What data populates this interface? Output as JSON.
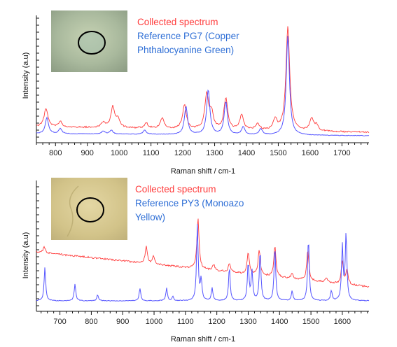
{
  "colors": {
    "collected": "#ff3b3b",
    "reference": "#5555ff",
    "legend_reference": "#2f6fd6",
    "axis": "#111111"
  },
  "chart_data": [
    {
      "type": "line",
      "panel": "top",
      "xlabel": "Raman shift / cm-1",
      "ylabel": "Intensity (a.u)",
      "xlim": [
        740,
        1785
      ],
      "x_ticks": [
        "800",
        "900",
        "1000",
        "1100",
        "1200",
        "1300",
        "1400",
        "1500",
        "1600",
        "1700"
      ],
      "legend": [
        "Collected spectrum",
        "Reference PG7 (Copper",
        "Phthalocyanine Green)"
      ],
      "grid": false,
      "inset": "microscope photo with black circle, top-left",
      "series": [
        {
          "name": "Collected spectrum",
          "peaks": [
            {
              "x": 770,
              "y": 0.18
            },
            {
              "x": 815,
              "y": 0.05
            },
            {
              "x": 950,
              "y": 0.05
            },
            {
              "x": 980,
              "y": 0.2
            },
            {
              "x": 997,
              "y": 0.08
            },
            {
              "x": 1085,
              "y": 0.05
            },
            {
              "x": 1135,
              "y": 0.1
            },
            {
              "x": 1205,
              "y": 0.23
            },
            {
              "x": 1275,
              "y": 0.33
            },
            {
              "x": 1290,
              "y": 0.15
            },
            {
              "x": 1335,
              "y": 0.3
            },
            {
              "x": 1385,
              "y": 0.14
            },
            {
              "x": 1435,
              "y": 0.06
            },
            {
              "x": 1490,
              "y": 0.1
            },
            {
              "x": 1530,
              "y": 1.0
            },
            {
              "x": 1605,
              "y": 0.12
            },
            {
              "x": 1620,
              "y": 0.05
            }
          ]
        },
        {
          "name": "Reference PG7 (Copper Phthalocyanine Green)",
          "peaks": [
            {
              "x": 773,
              "y": 0.16
            },
            {
              "x": 815,
              "y": 0.05
            },
            {
              "x": 950,
              "y": 0.03
            },
            {
              "x": 975,
              "y": 0.04
            },
            {
              "x": 1080,
              "y": 0.04
            },
            {
              "x": 1210,
              "y": 0.28
            },
            {
              "x": 1280,
              "y": 0.45
            },
            {
              "x": 1335,
              "y": 0.33
            },
            {
              "x": 1390,
              "y": 0.08
            },
            {
              "x": 1445,
              "y": 0.06
            },
            {
              "x": 1530,
              "y": 1.0
            }
          ]
        }
      ]
    },
    {
      "type": "line",
      "panel": "bottom",
      "xlabel": "Raman shift / cm-1",
      "ylabel": "Intensity (a.u)",
      "xlim": [
        625,
        1685
      ],
      "x_ticks": [
        "700",
        "800",
        "900",
        "1000",
        "1100",
        "1200",
        "1300",
        "1400",
        "1500",
        "1600"
      ],
      "legend": [
        "Collected spectrum",
        "Reference PY3 (Monoazo",
        "Yellow)"
      ],
      "grid": false,
      "inset": "microscope photo with black circle, top-left",
      "series": [
        {
          "name": "Collected spectrum",
          "peaks": [
            {
              "x": 650,
              "y": 0.1
            },
            {
              "x": 975,
              "y": 0.3
            },
            {
              "x": 998,
              "y": 0.15
            },
            {
              "x": 1140,
              "y": 0.9
            },
            {
              "x": 1190,
              "y": 0.1
            },
            {
              "x": 1240,
              "y": 0.15
            },
            {
              "x": 1300,
              "y": 0.4
            },
            {
              "x": 1335,
              "y": 0.45
            },
            {
              "x": 1385,
              "y": 0.55
            },
            {
              "x": 1440,
              "y": 0.1
            },
            {
              "x": 1490,
              "y": 0.55
            },
            {
              "x": 1550,
              "y": 0.08
            },
            {
              "x": 1600,
              "y": 0.4
            },
            {
              "x": 1615,
              "y": 0.25
            }
          ]
        },
        {
          "name": "Reference PY3 (Monoazo Yellow)",
          "peaks": [
            {
              "x": 652,
              "y": 0.4
            },
            {
              "x": 748,
              "y": 0.2
            },
            {
              "x": 820,
              "y": 0.07
            },
            {
              "x": 955,
              "y": 0.15
            },
            {
              "x": 1040,
              "y": 0.15
            },
            {
              "x": 1060,
              "y": 0.05
            },
            {
              "x": 1138,
              "y": 0.9
            },
            {
              "x": 1150,
              "y": 0.25
            },
            {
              "x": 1185,
              "y": 0.15
            },
            {
              "x": 1240,
              "y": 0.4
            },
            {
              "x": 1300,
              "y": 0.45
            },
            {
              "x": 1312,
              "y": 0.35
            },
            {
              "x": 1338,
              "y": 0.6
            },
            {
              "x": 1385,
              "y": 0.65
            },
            {
              "x": 1440,
              "y": 0.12
            },
            {
              "x": 1492,
              "y": 0.75
            },
            {
              "x": 1565,
              "y": 0.12
            },
            {
              "x": 1600,
              "y": 0.65
            },
            {
              "x": 1612,
              "y": 0.8
            }
          ]
        }
      ]
    }
  ]
}
